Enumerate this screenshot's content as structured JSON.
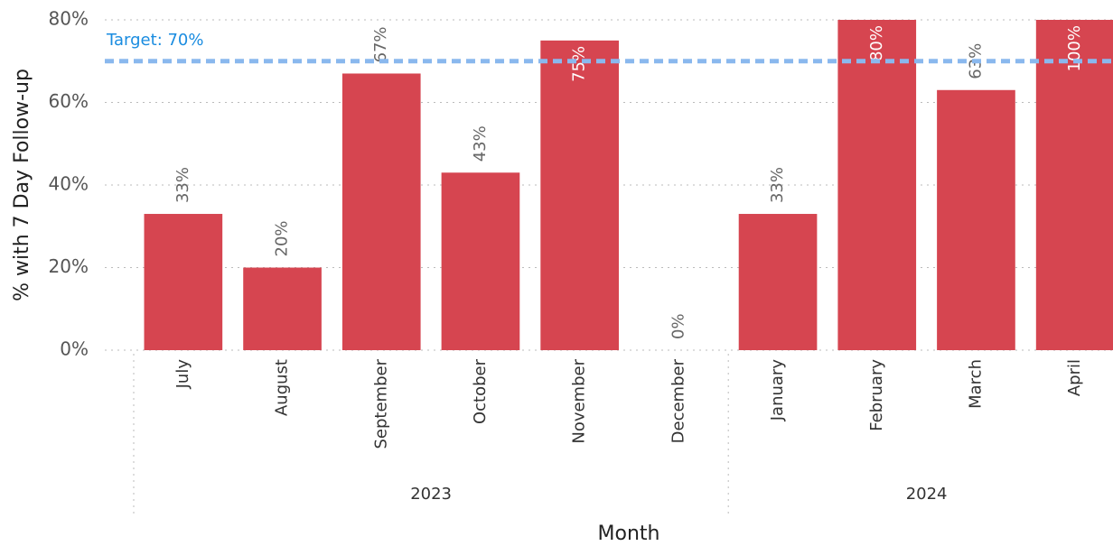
{
  "chart_data": {
    "type": "bar",
    "y_label": "% with 7 Day Follow-up",
    "x_label": "Month",
    "groups": [
      {
        "name": "2023",
        "categories": [
          "July",
          "August",
          "September",
          "October",
          "November",
          "December"
        ]
      },
      {
        "name": "2024",
        "categories": [
          "January",
          "February",
          "March",
          "April"
        ]
      }
    ],
    "values": [
      33,
      20,
      67,
      43,
      75,
      0,
      33,
      80,
      63,
      100
    ],
    "value_labels": [
      "33%",
      "20%",
      "67%",
      "43%",
      "75%",
      "0%",
      "33%",
      "80%",
      "63%",
      "100%"
    ],
    "color": "#d64550",
    "ylim": [
      0,
      80
    ],
    "yticks": [
      {
        "value": 0,
        "label": "0%"
      },
      {
        "value": 20,
        "label": "20%"
      },
      {
        "value": 40,
        "label": "40%"
      },
      {
        "value": 60,
        "label": "60%"
      },
      {
        "value": 80,
        "label": "80%"
      }
    ],
    "grid": true,
    "target": {
      "value": 70,
      "label": "Target: 70%",
      "color": "#8ab8ee"
    }
  }
}
